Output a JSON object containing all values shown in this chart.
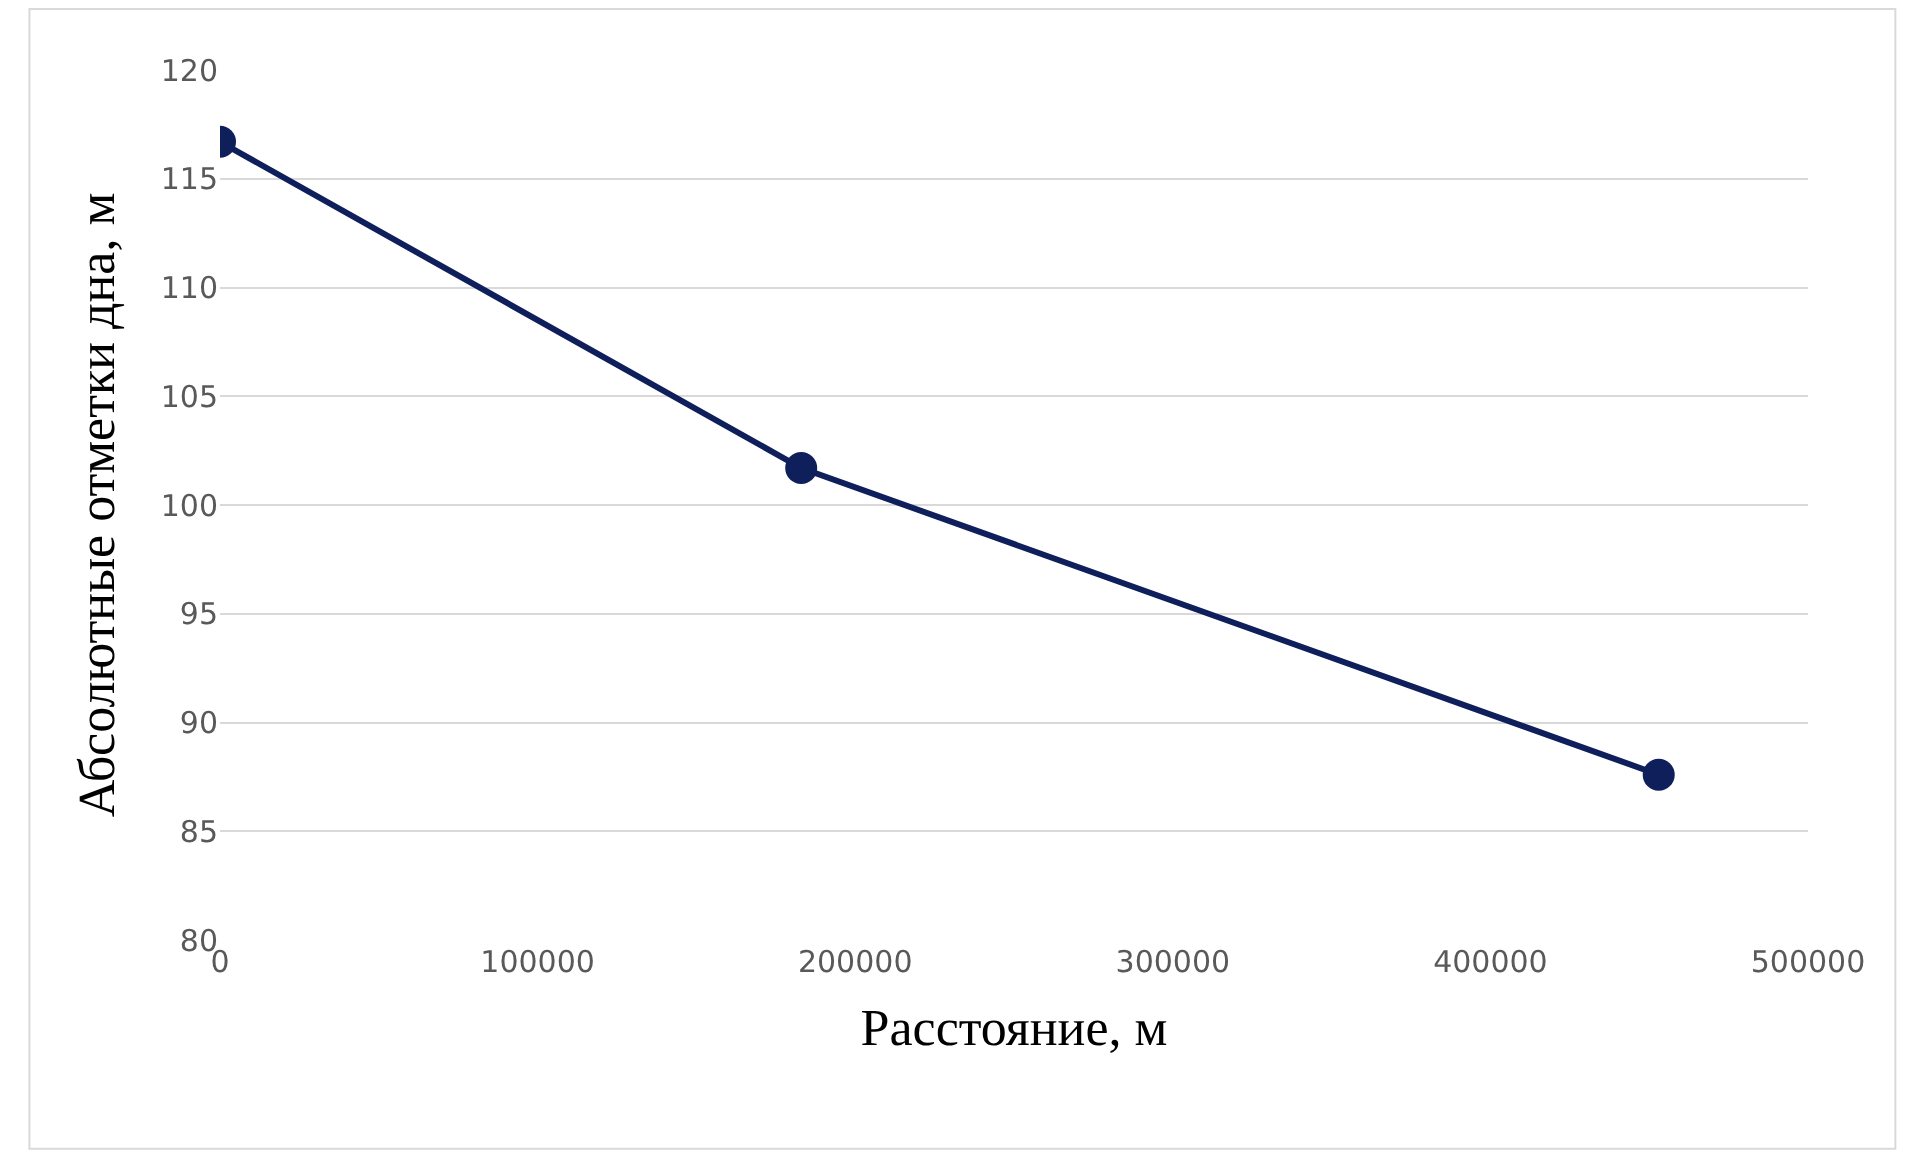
{
  "chart_data": {
    "type": "line",
    "xlabel": "Расстояние, м",
    "ylabel": "Абсолютные отметки дна, м",
    "x": [
      0,
      183000,
      453000
    ],
    "series": [
      {
        "color": "#0f1f5c",
        "values": [
          116.7,
          101.7,
          87.6
        ]
      }
    ],
    "xlim": [
      0,
      500000
    ],
    "xticks": [
      0,
      100000,
      200000,
      300000,
      400000,
      500000
    ],
    "ylim": [
      80,
      120
    ],
    "yticks": [
      80,
      85,
      90,
      95,
      100,
      105,
      110,
      115,
      120
    ],
    "grid": "y",
    "marker": "circle",
    "line_style": "solid",
    "legend": false
  }
}
